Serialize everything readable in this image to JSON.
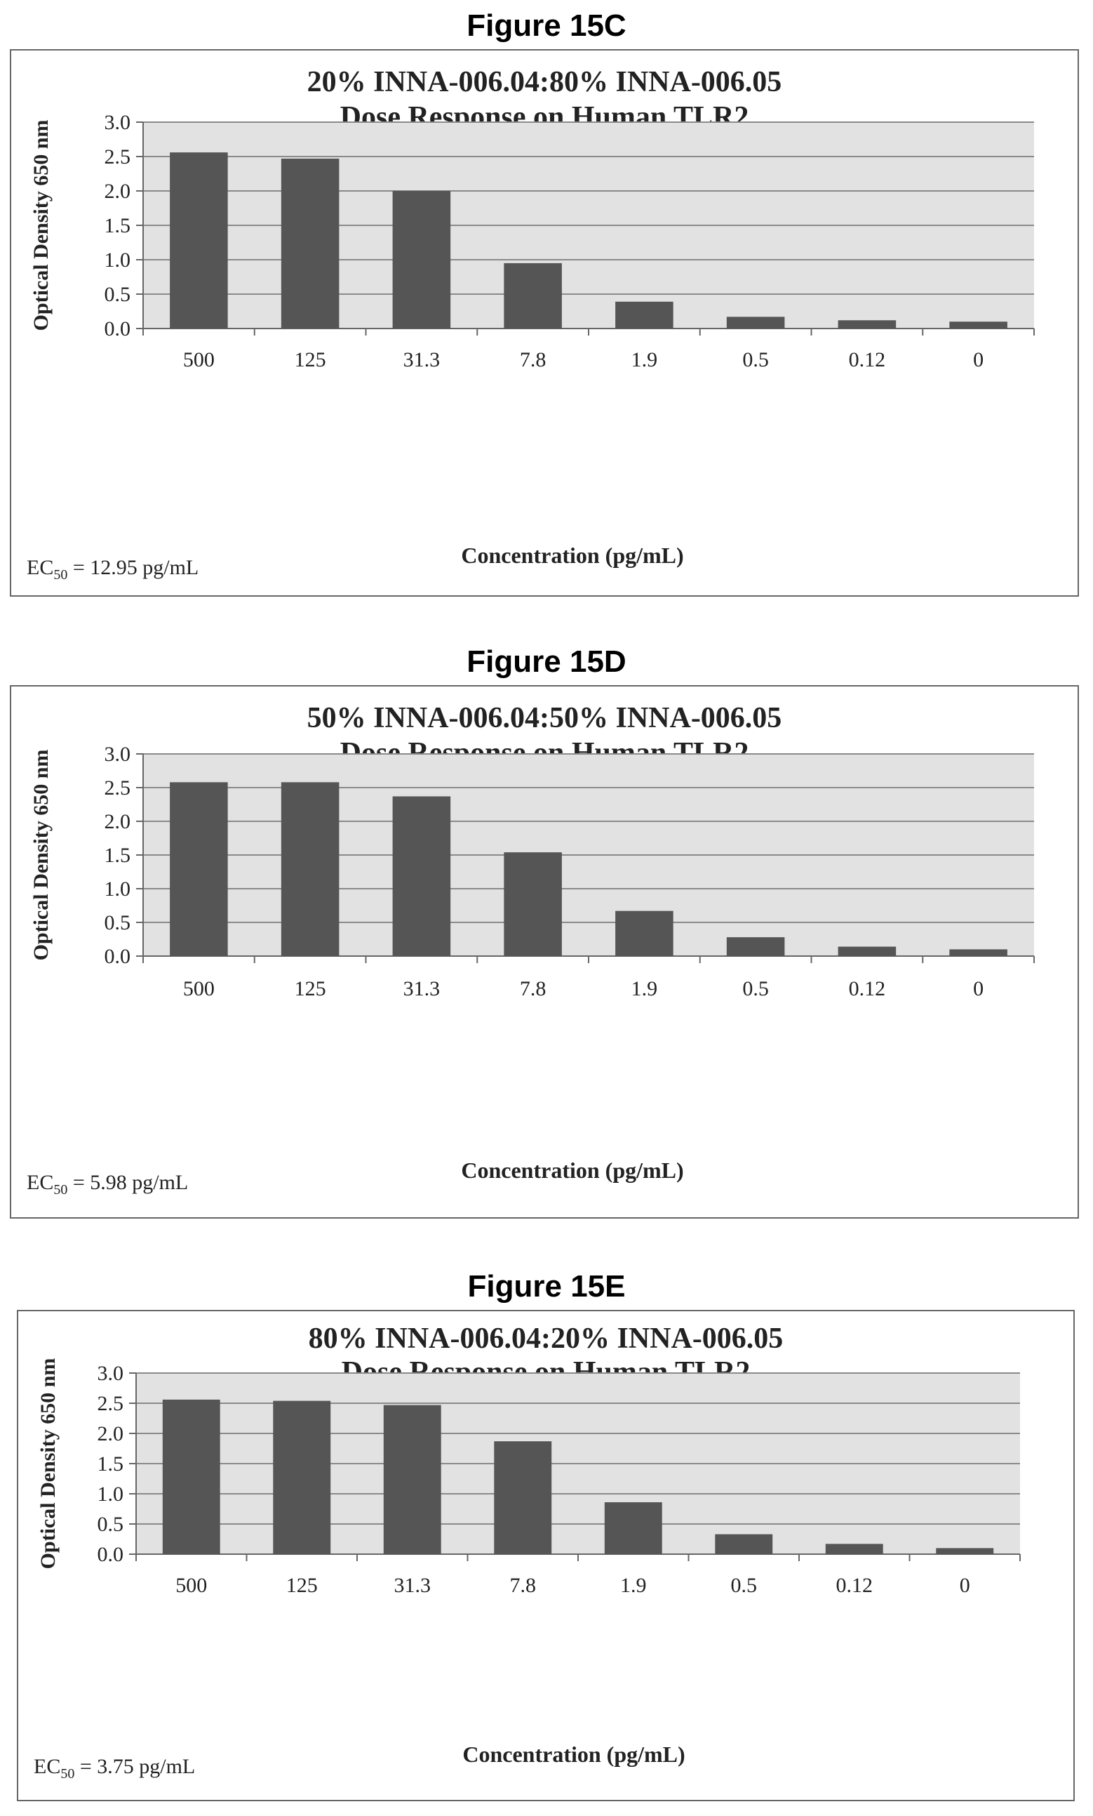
{
  "figures": [
    {
      "label": "Figure 15C",
      "ec50_prefix": "EC",
      "ec50_sub": "50",
      "ec50_value": " = 12.95 pg/mL"
    },
    {
      "label": "Figure 15D",
      "ec50_prefix": "EC",
      "ec50_sub": "50",
      "ec50_value": " = 5.98 pg/mL"
    },
    {
      "label": "Figure 15E",
      "ec50_prefix": "EC",
      "ec50_sub": "50",
      "ec50_value": " = 3.75 pg/mL"
    }
  ],
  "colors": {
    "bar": "#555555",
    "plot_background": "#e2e2e2",
    "gridline": "#8a8a8a"
  },
  "chart_data": [
    {
      "type": "bar",
      "title": "20% INNA-006.04:80% INNA-006.05",
      "subtitle": "Dose Response on Human TLR2",
      "xlabel": "Concentration (pg/mL)",
      "ylabel": "Optical Density 650 nm",
      "categories": [
        "500",
        "125",
        "31.3",
        "7.8",
        "1.9",
        "0.5",
        "0.12",
        "0"
      ],
      "values": [
        2.56,
        2.47,
        2.0,
        0.95,
        0.39,
        0.17,
        0.12,
        0.1
      ],
      "ylim": [
        0,
        3.0
      ],
      "yticks": [
        "0.0",
        "0.5",
        "1.0",
        "1.5",
        "2.0",
        "2.5",
        "3.0"
      ],
      "grid": true,
      "legend": "none"
    },
    {
      "type": "bar",
      "title": "50% INNA-006.04:50% INNA-006.05",
      "subtitle": "Dose Response on Human TLR2",
      "xlabel": "Concentration (pg/mL)",
      "ylabel": "Optical Density 650 nm",
      "categories": [
        "500",
        "125",
        "31.3",
        "7.8",
        "1.9",
        "0.5",
        "0.12",
        "0"
      ],
      "values": [
        2.58,
        2.58,
        2.37,
        1.54,
        0.67,
        0.28,
        0.14,
        0.1
      ],
      "ylim": [
        0,
        3.0
      ],
      "yticks": [
        "0.0",
        "0.5",
        "1.0",
        "1.5",
        "2.0",
        "2.5",
        "3.0"
      ],
      "grid": true,
      "legend": "none"
    },
    {
      "type": "bar",
      "title": "80% INNA-006.04:20% INNA-006.05",
      "subtitle": "Dose Response on Human TLR2",
      "xlabel": "Concentration (pg/mL)",
      "ylabel": "Optical Density 650 nm",
      "categories": [
        "500",
        "125",
        "31.3",
        "7.8",
        "1.9",
        "0.5",
        "0.12",
        "0"
      ],
      "values": [
        2.56,
        2.54,
        2.47,
        1.87,
        0.86,
        0.33,
        0.17,
        0.1
      ],
      "ylim": [
        0,
        3.0
      ],
      "yticks": [
        "0.0",
        "0.5",
        "1.0",
        "1.5",
        "2.0",
        "2.5",
        "3.0"
      ],
      "grid": true,
      "legend": "none"
    }
  ]
}
